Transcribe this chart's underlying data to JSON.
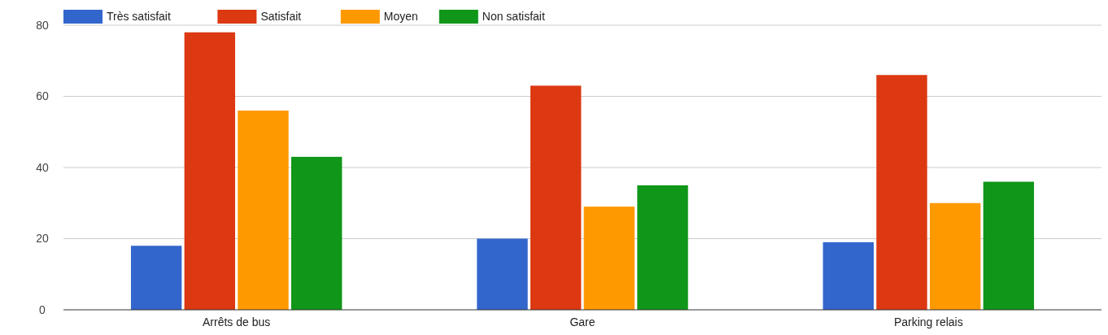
{
  "chart_data": {
    "type": "bar",
    "categories": [
      "Arrêts de bus",
      "Gare",
      "Parking relais"
    ],
    "series": [
      {
        "name": "Très satisfait",
        "color": "#3366cc",
        "values": [
          18,
          20,
          19
        ]
      },
      {
        "name": "Satisfait",
        "color": "#dc3912",
        "values": [
          78,
          63,
          66
        ]
      },
      {
        "name": "Moyen",
        "color": "#ff9900",
        "values": [
          56,
          29,
          30
        ]
      },
      {
        "name": "Non satisfait",
        "color": "#109618",
        "values": [
          43,
          35,
          36
        ]
      }
    ],
    "ylim": [
      0,
      80
    ],
    "yticks": [
      0,
      20,
      40,
      60,
      80
    ],
    "grid": "y",
    "legend": "top left"
  }
}
